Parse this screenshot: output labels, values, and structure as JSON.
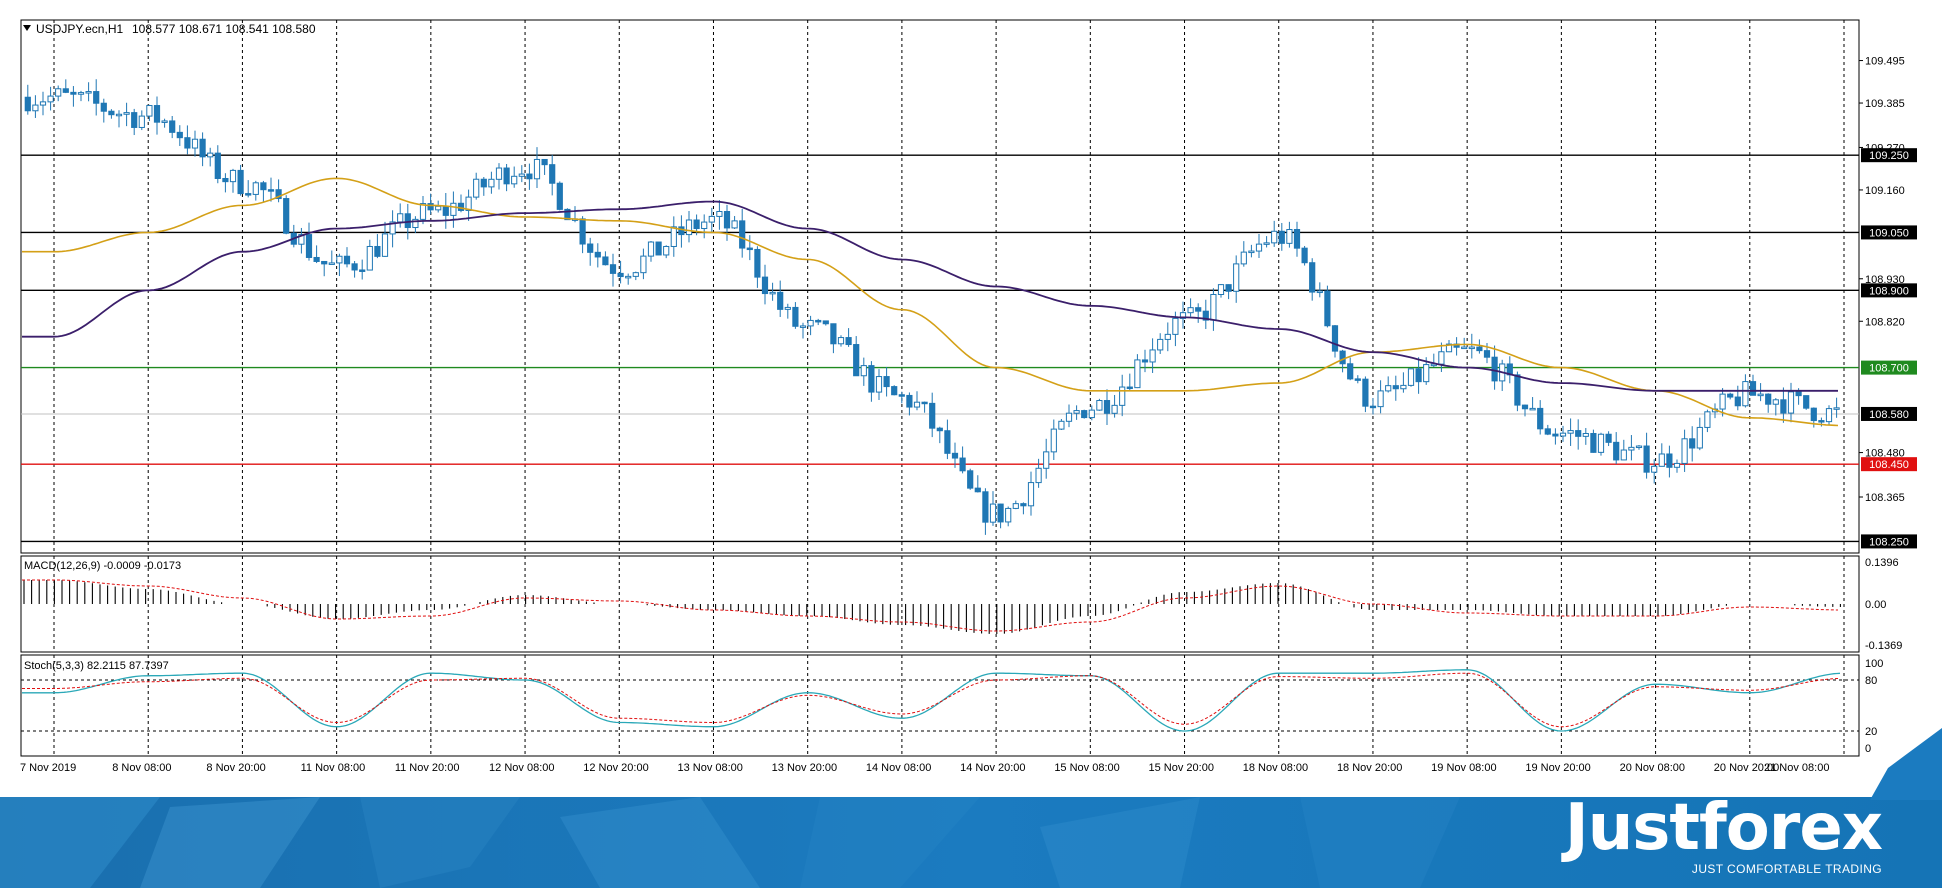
{
  "window": {
    "title": "USDJPY.ecn,H1",
    "ohlc": "108.577 108.671 108.541 108.580"
  },
  "chart_data": [
    {
      "type": "candlestick",
      "symbol": "USDJPY.ecn",
      "timeframe": "H1",
      "ylim": [
        108.22,
        109.6
      ],
      "y_ticks": [
        "109.495",
        "109.385",
        "109.270",
        "109.160",
        "108.930",
        "108.820",
        "108.480",
        "108.365"
      ],
      "x_ticks": [
        "7 Nov 2019",
        "8 Nov 08:00",
        "8 Nov 20:00",
        "11 Nov 08:00",
        "11 Nov 20:00",
        "12 Nov 08:00",
        "12 Nov 20:00",
        "13 Nov 08:00",
        "13 Nov 20:00",
        "14 Nov 08:00",
        "14 Nov 20:00",
        "15 Nov 08:00",
        "15 Nov 20:00",
        "18 Nov 08:00",
        "18 Nov 20:00",
        "19 Nov 08:00",
        "19 Nov 20:00",
        "20 Nov 08:00",
        "20 Nov 20:00",
        "21 Nov 08:00"
      ],
      "current_price": "108.580",
      "horizontal_levels": [
        {
          "price": "109.250",
          "color": "#000000"
        },
        {
          "price": "109.050",
          "color": "#000000"
        },
        {
          "price": "108.900",
          "color": "#000000"
        },
        {
          "price": "108.700",
          "color": "#1f8a1f"
        },
        {
          "price": "108.450",
          "color": "#e01010"
        },
        {
          "price": "108.250",
          "color": "#000000"
        }
      ],
      "series_colors": {
        "candle": "#1f77b4",
        "ma_fast": "#d4a017",
        "ma_slow": "#3b1f6b"
      },
      "close_path": [
        {
          "x": "7 Nov 2019",
          "y": 109.4
        },
        {
          "x": "8 Nov 08:00",
          "y": 109.35
        },
        {
          "x": "8 Nov 20:00",
          "y": 109.18
        },
        {
          "x": "11 Nov 08:00",
          "y": 108.96
        },
        {
          "x": "11 Nov 20:00",
          "y": 109.1
        },
        {
          "x": "12 Nov 08:00",
          "y": 109.22
        },
        {
          "x": "12 Nov 20:00",
          "y": 108.96
        },
        {
          "x": "13 Nov 08:00",
          "y": 109.08
        },
        {
          "x": "13 Nov 20:00",
          "y": 108.8
        },
        {
          "x": "14 Nov 08:00",
          "y": 108.62
        },
        {
          "x": "14 Nov 20:00",
          "y": 108.32
        },
        {
          "x": "15 Nov 08:00",
          "y": 108.6
        },
        {
          "x": "15 Nov 20:00",
          "y": 108.82
        },
        {
          "x": "18 Nov 08:00",
          "y": 109.04
        },
        {
          "x": "18 Nov 20:00",
          "y": 108.62
        },
        {
          "x": "19 Nov 08:00",
          "y": 108.74
        },
        {
          "x": "19 Nov 20:00",
          "y": 108.53
        },
        {
          "x": "20 Nov 08:00",
          "y": 108.46
        },
        {
          "x": "20 Nov 20:00",
          "y": 108.63
        },
        {
          "x": "21 Nov 08:00",
          "y": 108.58
        }
      ],
      "ma_fast_path": [
        {
          "x": "7 Nov 2019",
          "y": 109.0
        },
        {
          "x": "8 Nov 08:00",
          "y": 109.05
        },
        {
          "x": "8 Nov 20:00",
          "y": 109.12
        },
        {
          "x": "11 Nov 08:00",
          "y": 109.19
        },
        {
          "x": "11 Nov 20:00",
          "y": 109.12
        },
        {
          "x": "12 Nov 08:00",
          "y": 109.09
        },
        {
          "x": "12 Nov 20:00",
          "y": 109.08
        },
        {
          "x": "13 Nov 08:00",
          "y": 109.05
        },
        {
          "x": "13 Nov 20:00",
          "y": 108.98
        },
        {
          "x": "14 Nov 08:00",
          "y": 108.85
        },
        {
          "x": "14 Nov 20:00",
          "y": 108.7
        },
        {
          "x": "15 Nov 08:00",
          "y": 108.64
        },
        {
          "x": "15 Nov 20:00",
          "y": 108.64
        },
        {
          "x": "18 Nov 08:00",
          "y": 108.66
        },
        {
          "x": "18 Nov 20:00",
          "y": 108.74
        },
        {
          "x": "19 Nov 08:00",
          "y": 108.76
        },
        {
          "x": "19 Nov 20:00",
          "y": 108.7
        },
        {
          "x": "20 Nov 08:00",
          "y": 108.64
        },
        {
          "x": "20 Nov 20:00",
          "y": 108.57
        },
        {
          "x": "21 Nov 08:00",
          "y": 108.55
        }
      ],
      "ma_slow_path": [
        {
          "x": "7 Nov 2019",
          "y": 108.78
        },
        {
          "x": "8 Nov 08:00",
          "y": 108.9
        },
        {
          "x": "8 Nov 20:00",
          "y": 109.0
        },
        {
          "x": "11 Nov 08:00",
          "y": 109.06
        },
        {
          "x": "11 Nov 20:00",
          "y": 109.08
        },
        {
          "x": "12 Nov 08:00",
          "y": 109.1
        },
        {
          "x": "12 Nov 20:00",
          "y": 109.11
        },
        {
          "x": "13 Nov 08:00",
          "y": 109.13
        },
        {
          "x": "13 Nov 20:00",
          "y": 109.06
        },
        {
          "x": "14 Nov 08:00",
          "y": 108.98
        },
        {
          "x": "14 Nov 20:00",
          "y": 108.91
        },
        {
          "x": "15 Nov 08:00",
          "y": 108.86
        },
        {
          "x": "15 Nov 20:00",
          "y": 108.83
        },
        {
          "x": "18 Nov 08:00",
          "y": 108.8
        },
        {
          "x": "18 Nov 20:00",
          "y": 108.74
        },
        {
          "x": "19 Nov 08:00",
          "y": 108.7
        },
        {
          "x": "19 Nov 20:00",
          "y": 108.66
        },
        {
          "x": "20 Nov 08:00",
          "y": 108.64
        },
        {
          "x": "20 Nov 20:00",
          "y": 108.64
        },
        {
          "x": "21 Nov 08:00",
          "y": 108.64
        }
      ]
    },
    {
      "type": "bar",
      "title": "MACD(12,26,9) -0.0009 -0.0173",
      "ylim": [
        -0.16,
        0.16
      ],
      "y_ticks": [
        "0.1396",
        "0.00",
        "-0.1369"
      ],
      "histogram_path": [
        {
          "x": "7 Nov 2019",
          "y": 0.08
        },
        {
          "x": "8 Nov 08:00",
          "y": 0.05
        },
        {
          "x": "8 Nov 20:00",
          "y": 0.0
        },
        {
          "x": "11 Nov 08:00",
          "y": -0.05
        },
        {
          "x": "11 Nov 20:00",
          "y": -0.02
        },
        {
          "x": "12 Nov 08:00",
          "y": 0.03
        },
        {
          "x": "12 Nov 20:00",
          "y": 0.0
        },
        {
          "x": "13 Nov 08:00",
          "y": -0.02
        },
        {
          "x": "13 Nov 20:00",
          "y": -0.04
        },
        {
          "x": "14 Nov 08:00",
          "y": -0.07
        },
        {
          "x": "14 Nov 20:00",
          "y": -0.1
        },
        {
          "x": "15 Nov 08:00",
          "y": -0.04
        },
        {
          "x": "15 Nov 20:00",
          "y": 0.04
        },
        {
          "x": "18 Nov 08:00",
          "y": 0.07
        },
        {
          "x": "18 Nov 20:00",
          "y": -0.02
        },
        {
          "x": "19 Nov 08:00",
          "y": -0.02
        },
        {
          "x": "19 Nov 20:00",
          "y": -0.04
        },
        {
          "x": "20 Nov 08:00",
          "y": -0.04
        },
        {
          "x": "20 Nov 20:00",
          "y": 0.0
        },
        {
          "x": "21 Nov 08:00",
          "y": -0.01
        }
      ],
      "signal_path": [
        {
          "x": "7 Nov 2019",
          "y": 0.08
        },
        {
          "x": "8 Nov 08:00",
          "y": 0.06
        },
        {
          "x": "8 Nov 20:00",
          "y": 0.02
        },
        {
          "x": "11 Nov 08:00",
          "y": -0.05
        },
        {
          "x": "11 Nov 20:00",
          "y": -0.04
        },
        {
          "x": "12 Nov 08:00",
          "y": 0.02
        },
        {
          "x": "12 Nov 20:00",
          "y": 0.01
        },
        {
          "x": "13 Nov 08:00",
          "y": -0.02
        },
        {
          "x": "13 Nov 20:00",
          "y": -0.04
        },
        {
          "x": "14 Nov 08:00",
          "y": -0.06
        },
        {
          "x": "14 Nov 20:00",
          "y": -0.09
        },
        {
          "x": "15 Nov 08:00",
          "y": -0.06
        },
        {
          "x": "15 Nov 20:00",
          "y": 0.02
        },
        {
          "x": "18 Nov 08:00",
          "y": 0.06
        },
        {
          "x": "18 Nov 20:00",
          "y": 0.0
        },
        {
          "x": "19 Nov 08:00",
          "y": -0.03
        },
        {
          "x": "19 Nov 20:00",
          "y": -0.04
        },
        {
          "x": "20 Nov 08:00",
          "y": -0.04
        },
        {
          "x": "20 Nov 20:00",
          "y": -0.01
        },
        {
          "x": "21 Nov 08:00",
          "y": -0.02
        }
      ]
    },
    {
      "type": "line",
      "title": "Stoch(5,3,3) 82.2115 87.7397",
      "ylim": [
        0,
        100
      ],
      "y_ticks": [
        "100",
        "80",
        "20",
        "0"
      ],
      "levels": [
        80,
        20
      ],
      "main_path": [
        {
          "x": "7 Nov 2019",
          "y": 65
        },
        {
          "x": "8 Nov 08:00",
          "y": 85
        },
        {
          "x": "8 Nov 20:00",
          "y": 88
        },
        {
          "x": "11 Nov 08:00",
          "y": 25
        },
        {
          "x": "11 Nov 20:00",
          "y": 88
        },
        {
          "x": "12 Nov 08:00",
          "y": 80
        },
        {
          "x": "12 Nov 20:00",
          "y": 30
        },
        {
          "x": "13 Nov 08:00",
          "y": 25
        },
        {
          "x": "13 Nov 20:00",
          "y": 65
        },
        {
          "x": "14 Nov 08:00",
          "y": 35
        },
        {
          "x": "14 Nov 20:00",
          "y": 88
        },
        {
          "x": "15 Nov 08:00",
          "y": 85
        },
        {
          "x": "15 Nov 20:00",
          "y": 20
        },
        {
          "x": "18 Nov 08:00",
          "y": 88
        },
        {
          "x": "18 Nov 20:00",
          "y": 88
        },
        {
          "x": "19 Nov 08:00",
          "y": 92
        },
        {
          "x": "19 Nov 20:00",
          "y": 20
        },
        {
          "x": "20 Nov 08:00",
          "y": 75
        },
        {
          "x": "20 Nov 20:00",
          "y": 65
        },
        {
          "x": "21 Nov 08:00",
          "y": 88
        }
      ],
      "signal_path": [
        {
          "x": "7 Nov 2019",
          "y": 70
        },
        {
          "x": "8 Nov 08:00",
          "y": 78
        },
        {
          "x": "8 Nov 20:00",
          "y": 82
        },
        {
          "x": "11 Nov 08:00",
          "y": 30
        },
        {
          "x": "11 Nov 20:00",
          "y": 80
        },
        {
          "x": "12 Nov 08:00",
          "y": 82
        },
        {
          "x": "12 Nov 20:00",
          "y": 35
        },
        {
          "x": "13 Nov 08:00",
          "y": 30
        },
        {
          "x": "13 Nov 20:00",
          "y": 62
        },
        {
          "x": "14 Nov 08:00",
          "y": 40
        },
        {
          "x": "14 Nov 20:00",
          "y": 80
        },
        {
          "x": "15 Nov 08:00",
          "y": 85
        },
        {
          "x": "15 Nov 20:00",
          "y": 28
        },
        {
          "x": "18 Nov 08:00",
          "y": 84
        },
        {
          "x": "18 Nov 20:00",
          "y": 82
        },
        {
          "x": "19 Nov 08:00",
          "y": 88
        },
        {
          "x": "19 Nov 20:00",
          "y": 25
        },
        {
          "x": "20 Nov 08:00",
          "y": 72
        },
        {
          "x": "20 Nov 20:00",
          "y": 68
        },
        {
          "x": "21 Nov 08:00",
          "y": 82
        }
      ]
    }
  ],
  "footer": {
    "brand": "Justforex",
    "tagline": "JUST COMFORTABLE TRADING",
    "colors": {
      "banner": "#1573b5",
      "banner_light": "#3b95d3"
    }
  }
}
